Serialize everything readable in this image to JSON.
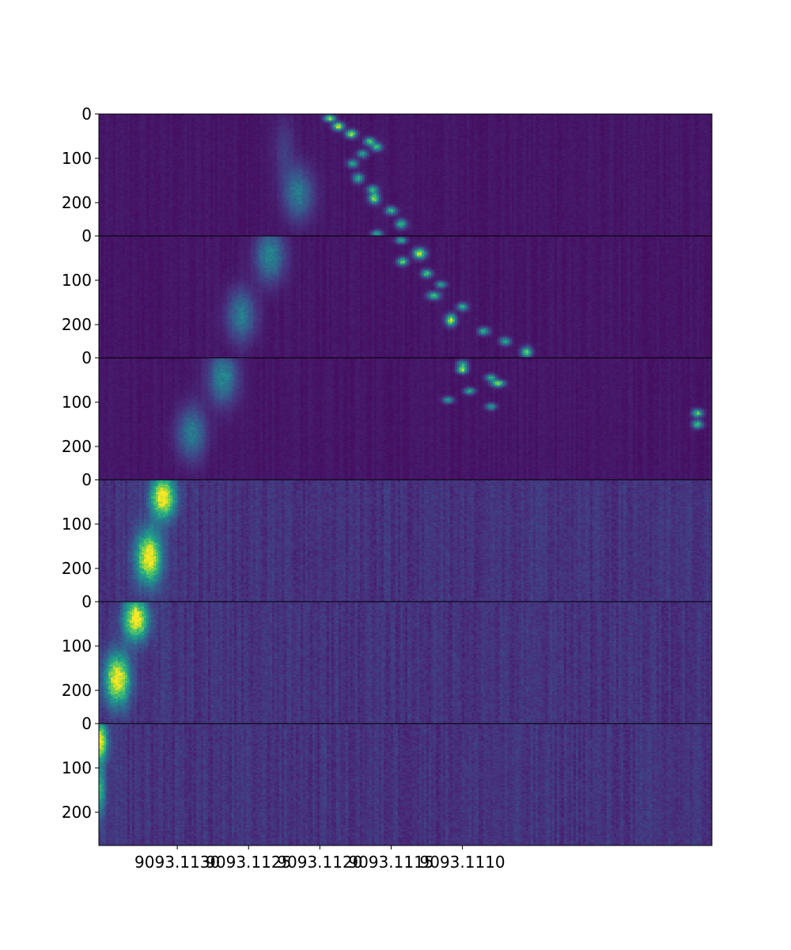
{
  "chart_data": {
    "type": "heatmap",
    "title": "",
    "xlabel": "",
    "ylabel": "",
    "colormap": "viridis",
    "x_axis": {
      "reversed": true,
      "range": [
        9093.11355,
        9093.10925
      ],
      "ticks": [
        {
          "value": 9093.113,
          "label": "9093.1130"
        },
        {
          "value": 9093.1125,
          "label": "9093.1125"
        },
        {
          "value": 9093.112,
          "label": "9093.1120"
        },
        {
          "value": 9093.1115,
          "label": "9093.1115"
        },
        {
          "value": 9093.111,
          "label": "9093.1110"
        }
      ]
    },
    "y_axis": {
      "range_per_panel": [
        0,
        275
      ],
      "ticks": [
        {
          "value": 0,
          "label": "0"
        },
        {
          "value": 100,
          "label": "100"
        },
        {
          "value": 200,
          "label": "200"
        }
      ]
    },
    "panels": [
      {
        "index": 1,
        "noise_level": 0.09,
        "features": [
          {
            "x": 9093.11193,
            "y": 10,
            "sx": 2.5e-05,
            "sy": 5,
            "intensity": 0.85
          },
          {
            "x": 9093.11187,
            "y": 28,
            "sx": 2.5e-05,
            "sy": 6,
            "intensity": 0.9
          },
          {
            "x": 9093.11178,
            "y": 45,
            "sx": 2.5e-05,
            "sy": 6,
            "intensity": 0.85
          },
          {
            "x": 9093.11165,
            "y": 62,
            "sx": 2.5e-05,
            "sy": 6,
            "intensity": 0.7
          },
          {
            "x": 9093.1116,
            "y": 75,
            "sx": 2.5e-05,
            "sy": 6,
            "intensity": 0.6
          },
          {
            "x": 9093.1117,
            "y": 90,
            "sx": 2.5e-05,
            "sy": 6,
            "intensity": 0.5
          },
          {
            "x": 9093.11177,
            "y": 112,
            "sx": 2.5e-05,
            "sy": 6,
            "intensity": 0.55
          },
          {
            "x": 9093.11173,
            "y": 145,
            "sx": 2.5e-05,
            "sy": 7,
            "intensity": 0.6
          },
          {
            "x": 9093.11163,
            "y": 170,
            "sx": 2.5e-05,
            "sy": 6,
            "intensity": 0.6
          },
          {
            "x": 9093.11162,
            "y": 190,
            "sx": 2.5e-05,
            "sy": 8,
            "intensity": 0.8
          },
          {
            "x": 9093.1115,
            "y": 218,
            "sx": 2.5e-05,
            "sy": 6,
            "intensity": 0.65
          },
          {
            "x": 9093.11143,
            "y": 248,
            "sx": 2.5e-05,
            "sy": 7,
            "intensity": 0.6
          },
          {
            "x": 9093.1116,
            "y": 270,
            "sx": 2.5e-05,
            "sy": 5,
            "intensity": 0.55
          },
          {
            "x": 9093.11215,
            "y": 180,
            "sx": 7e-05,
            "sy": 40,
            "intensity": 0.35
          },
          {
            "x": 9093.11225,
            "y": 80,
            "sx": 5e-05,
            "sy": 50,
            "intensity": 0.12
          }
        ]
      },
      {
        "index": 2,
        "noise_level": 0.09,
        "features": [
          {
            "x": 9093.11143,
            "y": 10,
            "sx": 2.5e-05,
            "sy": 5,
            "intensity": 0.6
          },
          {
            "x": 9093.1113,
            "y": 40,
            "sx": 3e-05,
            "sy": 8,
            "intensity": 0.85
          },
          {
            "x": 9093.11142,
            "y": 58,
            "sx": 2.5e-05,
            "sy": 6,
            "intensity": 0.7
          },
          {
            "x": 9093.11125,
            "y": 85,
            "sx": 2.5e-05,
            "sy": 6,
            "intensity": 0.65
          },
          {
            "x": 9093.11115,
            "y": 110,
            "sx": 2.5e-05,
            "sy": 5,
            "intensity": 0.5
          },
          {
            "x": 9093.1112,
            "y": 135,
            "sx": 3e-05,
            "sy": 6,
            "intensity": 0.6
          },
          {
            "x": 9093.111,
            "y": 160,
            "sx": 2.5e-05,
            "sy": 6,
            "intensity": 0.55
          },
          {
            "x": 9093.11108,
            "y": 190,
            "sx": 2.5e-05,
            "sy": 9,
            "intensity": 0.85
          },
          {
            "x": 9093.11085,
            "y": 215,
            "sx": 2.5e-05,
            "sy": 6,
            "intensity": 0.6
          },
          {
            "x": 9093.1107,
            "y": 238,
            "sx": 2.5e-05,
            "sy": 6,
            "intensity": 0.55
          },
          {
            "x": 9093.11055,
            "y": 262,
            "sx": 2.5e-05,
            "sy": 8,
            "intensity": 0.7
          },
          {
            "x": 9093.11235,
            "y": 45,
            "sx": 7e-05,
            "sy": 40,
            "intensity": 0.4
          },
          {
            "x": 9093.11255,
            "y": 180,
            "sx": 7e-05,
            "sy": 40,
            "intensity": 0.35
          }
        ]
      },
      {
        "index": 3,
        "noise_level": 0.09,
        "features": [
          {
            "x": 9093.111,
            "y": 15,
            "sx": 2.5e-05,
            "sy": 6,
            "intensity": 0.6
          },
          {
            "x": 9093.111,
            "y": 28,
            "sx": 2.5e-05,
            "sy": 5,
            "intensity": 0.75
          },
          {
            "x": 9093.1108,
            "y": 45,
            "sx": 2.5e-05,
            "sy": 5,
            "intensity": 0.6
          },
          {
            "x": 9093.11075,
            "y": 58,
            "sx": 3e-05,
            "sy": 5,
            "intensity": 0.8
          },
          {
            "x": 9093.11095,
            "y": 75,
            "sx": 2.5e-05,
            "sy": 5,
            "intensity": 0.55
          },
          {
            "x": 9093.1111,
            "y": 95,
            "sx": 2.5e-05,
            "sy": 5,
            "intensity": 0.5
          },
          {
            "x": 9093.1108,
            "y": 110,
            "sx": 2.5e-05,
            "sy": 5,
            "intensity": 0.5
          },
          {
            "x": 9093.10935,
            "y": 125,
            "sx": 2.5e-05,
            "sy": 6,
            "intensity": 0.7
          },
          {
            "x": 9093.10935,
            "y": 150,
            "sx": 2.5e-05,
            "sy": 6,
            "intensity": 0.65
          },
          {
            "x": 9093.11268,
            "y": 45,
            "sx": 7e-05,
            "sy": 40,
            "intensity": 0.4
          },
          {
            "x": 9093.1129,
            "y": 170,
            "sx": 7e-05,
            "sy": 40,
            "intensity": 0.35
          }
        ]
      },
      {
        "index": 4,
        "noise_level": 0.22,
        "features": [
          {
            "x": 9093.1131,
            "y": 40,
            "sx": 6e-05,
            "sy": 32,
            "intensity": 0.9
          },
          {
            "x": 9093.1132,
            "y": 175,
            "sx": 6e-05,
            "sy": 40,
            "intensity": 0.9
          }
        ]
      },
      {
        "index": 5,
        "noise_level": 0.22,
        "features": [
          {
            "x": 9093.11329,
            "y": 40,
            "sx": 6e-05,
            "sy": 32,
            "intensity": 0.9
          },
          {
            "x": 9093.11342,
            "y": 175,
            "sx": 6e-05,
            "sy": 40,
            "intensity": 0.9
          }
        ]
      },
      {
        "index": 6,
        "noise_level": 0.22,
        "features": [
          {
            "x": 9093.11355,
            "y": 40,
            "sx": 4e-05,
            "sy": 30,
            "intensity": 0.9
          },
          {
            "x": 9093.11355,
            "y": 150,
            "sx": 3e-05,
            "sy": 40,
            "intensity": 0.5
          }
        ]
      }
    ]
  }
}
